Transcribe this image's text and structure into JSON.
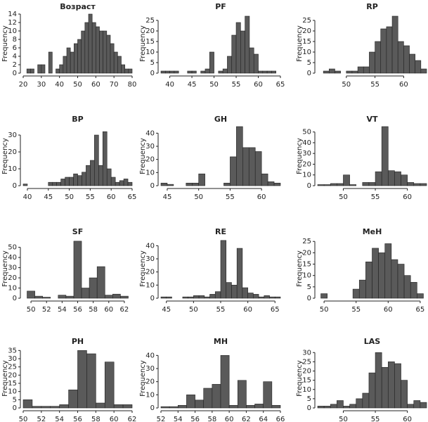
{
  "chart_data": [
    {
      "type": "histogram",
      "title": "Возраст",
      "ylabel": "Frequency",
      "color": "#5a5a5a",
      "bins": [
        22,
        24,
        26,
        28,
        30,
        32,
        34,
        36,
        38,
        40,
        42,
        44,
        46,
        48,
        50,
        52,
        54,
        56,
        58,
        60,
        62,
        64,
        66,
        68,
        70,
        72,
        74,
        76,
        78,
        80
      ],
      "counts": [
        1,
        1,
        0,
        2,
        2,
        0,
        5,
        0,
        1,
        2,
        4,
        6,
        5,
        7,
        8,
        10,
        12,
        14,
        12,
        11,
        10,
        10,
        9,
        7,
        5,
        4,
        2,
        1,
        1
      ],
      "xlim": [
        20,
        80
      ],
      "xticks": [
        20,
        30,
        40,
        50,
        60,
        70,
        80
      ],
      "ylim": [
        0,
        14
      ],
      "yticks": [
        0,
        2,
        4,
        6,
        8,
        10,
        12,
        14
      ]
    },
    {
      "type": "histogram",
      "title": "PF",
      "ylabel": "Frequency",
      "color": "#5a5a5a",
      "bins": [
        38,
        39,
        40,
        41,
        42,
        43,
        44,
        45,
        46,
        47,
        48,
        49,
        50,
        51,
        52,
        53,
        54,
        55,
        56,
        57,
        58,
        59,
        60,
        61,
        62,
        63,
        64
      ],
      "counts": [
        1,
        1,
        1,
        1,
        0,
        0,
        1,
        1,
        0,
        1,
        2,
        10,
        0,
        1,
        2,
        8,
        18,
        24,
        20,
        27,
        12,
        9,
        1,
        1,
        1,
        1
      ],
      "xlim": [
        38,
        65
      ],
      "xticks": [
        40,
        45,
        50,
        55,
        60,
        65
      ],
      "ylim": [
        0,
        28
      ],
      "yticks": [
        0,
        5,
        10,
        15,
        20,
        25
      ]
    },
    {
      "type": "histogram",
      "title": "RP",
      "ylabel": "Frequency",
      "color": "#5a5a5a",
      "bins": [
        46,
        47,
        48,
        49,
        50,
        51,
        52,
        53,
        54,
        55,
        56,
        57,
        58,
        59,
        60,
        61,
        62,
        63,
        64
      ],
      "counts": [
        1,
        2,
        1,
        0,
        1,
        1,
        3,
        3,
        10,
        15,
        21,
        22,
        27,
        15,
        13,
        9,
        6,
        2
      ],
      "xlim": [
        45,
        64
      ],
      "xticks": [
        50,
        55,
        60
      ],
      "ylim": [
        0,
        28
      ],
      "yticks": [
        0,
        5,
        10,
        15,
        20,
        25
      ]
    },
    {
      "type": "histogram",
      "title": "BP",
      "ylabel": "Frequency",
      "color": "#5a5a5a",
      "bins": [
        39,
        40,
        41,
        42,
        43,
        44,
        45,
        46,
        47,
        48,
        49,
        50,
        51,
        52,
        53,
        54,
        55,
        56,
        57,
        58,
        59,
        60,
        61,
        62,
        63,
        64,
        65
      ],
      "counts": [
        1,
        0,
        0,
        0,
        0,
        0,
        2,
        2,
        2,
        4,
        5,
        5,
        7,
        6,
        8,
        12,
        15,
        30,
        12,
        32,
        10,
        5,
        2,
        3,
        4,
        2
      ],
      "xlim": [
        39,
        65
      ],
      "xticks": [
        40,
        45,
        50,
        55,
        60,
        65
      ],
      "ylim": [
        0,
        35
      ],
      "yticks": [
        0,
        10,
        20,
        30
      ]
    },
    {
      "type": "histogram",
      "title": "GH",
      "ylabel": "Frequency",
      "color": "#5a5a5a",
      "bins": [
        44,
        45,
        46,
        47,
        48,
        49,
        50,
        51,
        52,
        53,
        54,
        55,
        56,
        57,
        58,
        59,
        60,
        61,
        62,
        63
      ],
      "counts": [
        2,
        1,
        0,
        0,
        2,
        2,
        9,
        0,
        0,
        0,
        2,
        22,
        45,
        29,
        29,
        26,
        9,
        3,
        2
      ],
      "xlim": [
        44,
        63
      ],
      "xticks": [
        45,
        50,
        55,
        60
      ],
      "ylim": [
        0,
        45
      ],
      "yticks": [
        0,
        10,
        20,
        30,
        40
      ]
    },
    {
      "type": "histogram",
      "title": "VT",
      "ylabel": "Frequency",
      "color": "#5a5a5a",
      "bins": [
        46,
        47,
        48,
        49,
        50,
        51,
        52,
        53,
        54,
        55,
        56,
        57,
        58,
        59,
        60,
        61,
        62,
        63
      ],
      "counts": [
        1,
        1,
        2,
        2,
        10,
        1,
        0,
        3,
        3,
        13,
        55,
        14,
        13,
        10,
        3,
        2,
        2
      ],
      "xlim": [
        46,
        63
      ],
      "xticks": [
        50,
        55,
        60
      ],
      "ylim": [
        0,
        55
      ],
      "yticks": [
        0,
        10,
        20,
        30,
        40,
        50
      ]
    },
    {
      "type": "histogram",
      "title": "SF",
      "ylabel": "Frequency",
      "color": "#5a5a5a",
      "bins": [
        49.5,
        50.5,
        51.5,
        52.5,
        53.5,
        54.5,
        55.5,
        56.5,
        57.5,
        58.5,
        59.5,
        60.5,
        61.5,
        62.5
      ],
      "counts": [
        7,
        2,
        1,
        0,
        3,
        2,
        56,
        10,
        20,
        31,
        3,
        4,
        2
      ],
      "xlim": [
        49,
        63
      ],
      "xticks": [
        50,
        52,
        54,
        56,
        58,
        60,
        62
      ],
      "ylim": [
        0,
        58
      ],
      "yticks": [
        0,
        10,
        20,
        30,
        40,
        50
      ]
    },
    {
      "type": "histogram",
      "title": "RE",
      "ylabel": "Frequency",
      "color": "#5a5a5a",
      "bins": [
        44,
        45,
        46,
        47,
        48,
        49,
        50,
        51,
        52,
        53,
        54,
        55,
        56,
        57,
        58,
        59,
        60,
        61,
        62,
        63,
        64,
        65,
        66
      ],
      "counts": [
        1,
        1,
        0,
        0,
        1,
        1,
        2,
        2,
        1,
        3,
        5,
        44,
        12,
        10,
        38,
        8,
        4,
        3,
        1,
        2,
        1,
        1
      ],
      "xlim": [
        44,
        66
      ],
      "xticks": [
        45,
        50,
        55,
        60,
        65
      ],
      "ylim": [
        0,
        45
      ],
      "yticks": [
        0,
        10,
        20,
        30,
        40
      ]
    },
    {
      "type": "histogram",
      "title": "MeH",
      "ylabel": "Frequency",
      "color": "#5a5a5a",
      "bins": [
        49.5,
        50.5,
        51.5,
        52.5,
        53.5,
        54.5,
        55.5,
        56.5,
        57.5,
        58.5,
        59.5,
        60.5,
        61.5,
        62.5,
        63.5,
        64.5,
        65.5
      ],
      "counts": [
        2,
        0,
        0,
        0,
        0,
        4,
        8,
        16,
        22,
        20,
        24,
        17,
        15,
        10,
        7,
        2
      ],
      "xlim": [
        49,
        66
      ],
      "xticks": [
        50,
        55,
        60,
        65
      ],
      "ylim": [
        0,
        26
      ],
      "yticks": [
        0,
        5,
        10,
        15,
        20,
        25
      ]
    },
    {
      "type": "histogram",
      "title": "PH",
      "ylabel": "Frequency",
      "color": "#5a5a5a",
      "bins": [
        50,
        51,
        52,
        53,
        54,
        55,
        56,
        57,
        58,
        59,
        60,
        61,
        62
      ],
      "counts": [
        5,
        1,
        1,
        1,
        2,
        11,
        35,
        33,
        3,
        28,
        2,
        2
      ],
      "xlim": [
        50,
        62
      ],
      "xticks": [
        50,
        52,
        54,
        56,
        58,
        60,
        62
      ],
      "ylim": [
        0,
        36
      ],
      "yticks": [
        0,
        5,
        10,
        15,
        20,
        25,
        30,
        35
      ]
    },
    {
      "type": "histogram",
      "title": "MH",
      "ylabel": "Frequency",
      "color": "#5a5a5a",
      "bins": [
        52,
        53,
        54,
        55,
        56,
        57,
        58,
        59,
        60,
        61,
        62,
        63,
        64,
        65,
        66
      ],
      "counts": [
        1,
        1,
        2,
        10,
        6,
        15,
        18,
        40,
        2,
        21,
        2,
        3,
        20,
        2
      ],
      "xlim": [
        52,
        66
      ],
      "xticks": [
        52,
        54,
        56,
        58,
        60,
        62,
        64,
        66
      ],
      "ylim": [
        0,
        45
      ],
      "yticks": [
        0,
        10,
        20,
        30,
        40
      ]
    },
    {
      "type": "histogram",
      "title": "LAS",
      "ylabel": "Frequency",
      "color": "#5a5a5a",
      "bins": [
        46,
        47,
        48,
        49,
        50,
        51,
        52,
        53,
        54,
        55,
        56,
        57,
        58,
        59,
        60,
        61,
        62,
        63
      ],
      "counts": [
        1,
        1,
        2,
        4,
        1,
        2,
        5,
        8,
        19,
        30,
        22,
        25,
        24,
        15,
        2,
        4,
        3
      ],
      "xlim": [
        46,
        63
      ],
      "xticks": [
        50,
        55,
        60
      ],
      "ylim": [
        0,
        32
      ],
      "yticks": [
        0,
        5,
        10,
        15,
        20,
        25,
        30
      ]
    }
  ]
}
